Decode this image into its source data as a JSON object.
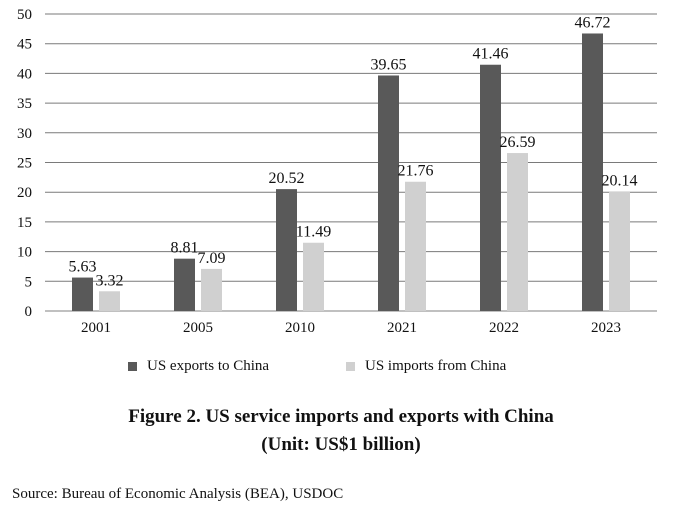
{
  "chart_data": {
    "type": "bar",
    "categories": [
      "2001",
      "2005",
      "2010",
      "2021",
      "2022",
      "2023"
    ],
    "series": [
      {
        "name": "US exports to China",
        "values": [
          5.63,
          8.81,
          20.52,
          39.65,
          41.46,
          46.72
        ],
        "color": "#595959"
      },
      {
        "name": "US imports from China",
        "values": [
          3.32,
          7.09,
          11.49,
          21.76,
          26.59,
          20.14
        ],
        "color": "#d0d0d0"
      }
    ],
    "ylim": [
      0,
      50
    ],
    "yticks": [
      0,
      5,
      10,
      15,
      20,
      25,
      30,
      35,
      40,
      45,
      50
    ],
    "grid": true,
    "legend_position": "bottom",
    "title": "",
    "xlabel": "",
    "ylabel": ""
  },
  "legend": {
    "exports_label": "US exports to China",
    "imports_label": "US imports from China"
  },
  "caption": {
    "line1": "Figure 2. US service imports and exports with China",
    "line2": "(Unit: US$1 billion)"
  },
  "source": "Source: Bureau of Economic Analysis (BEA), USDOC"
}
